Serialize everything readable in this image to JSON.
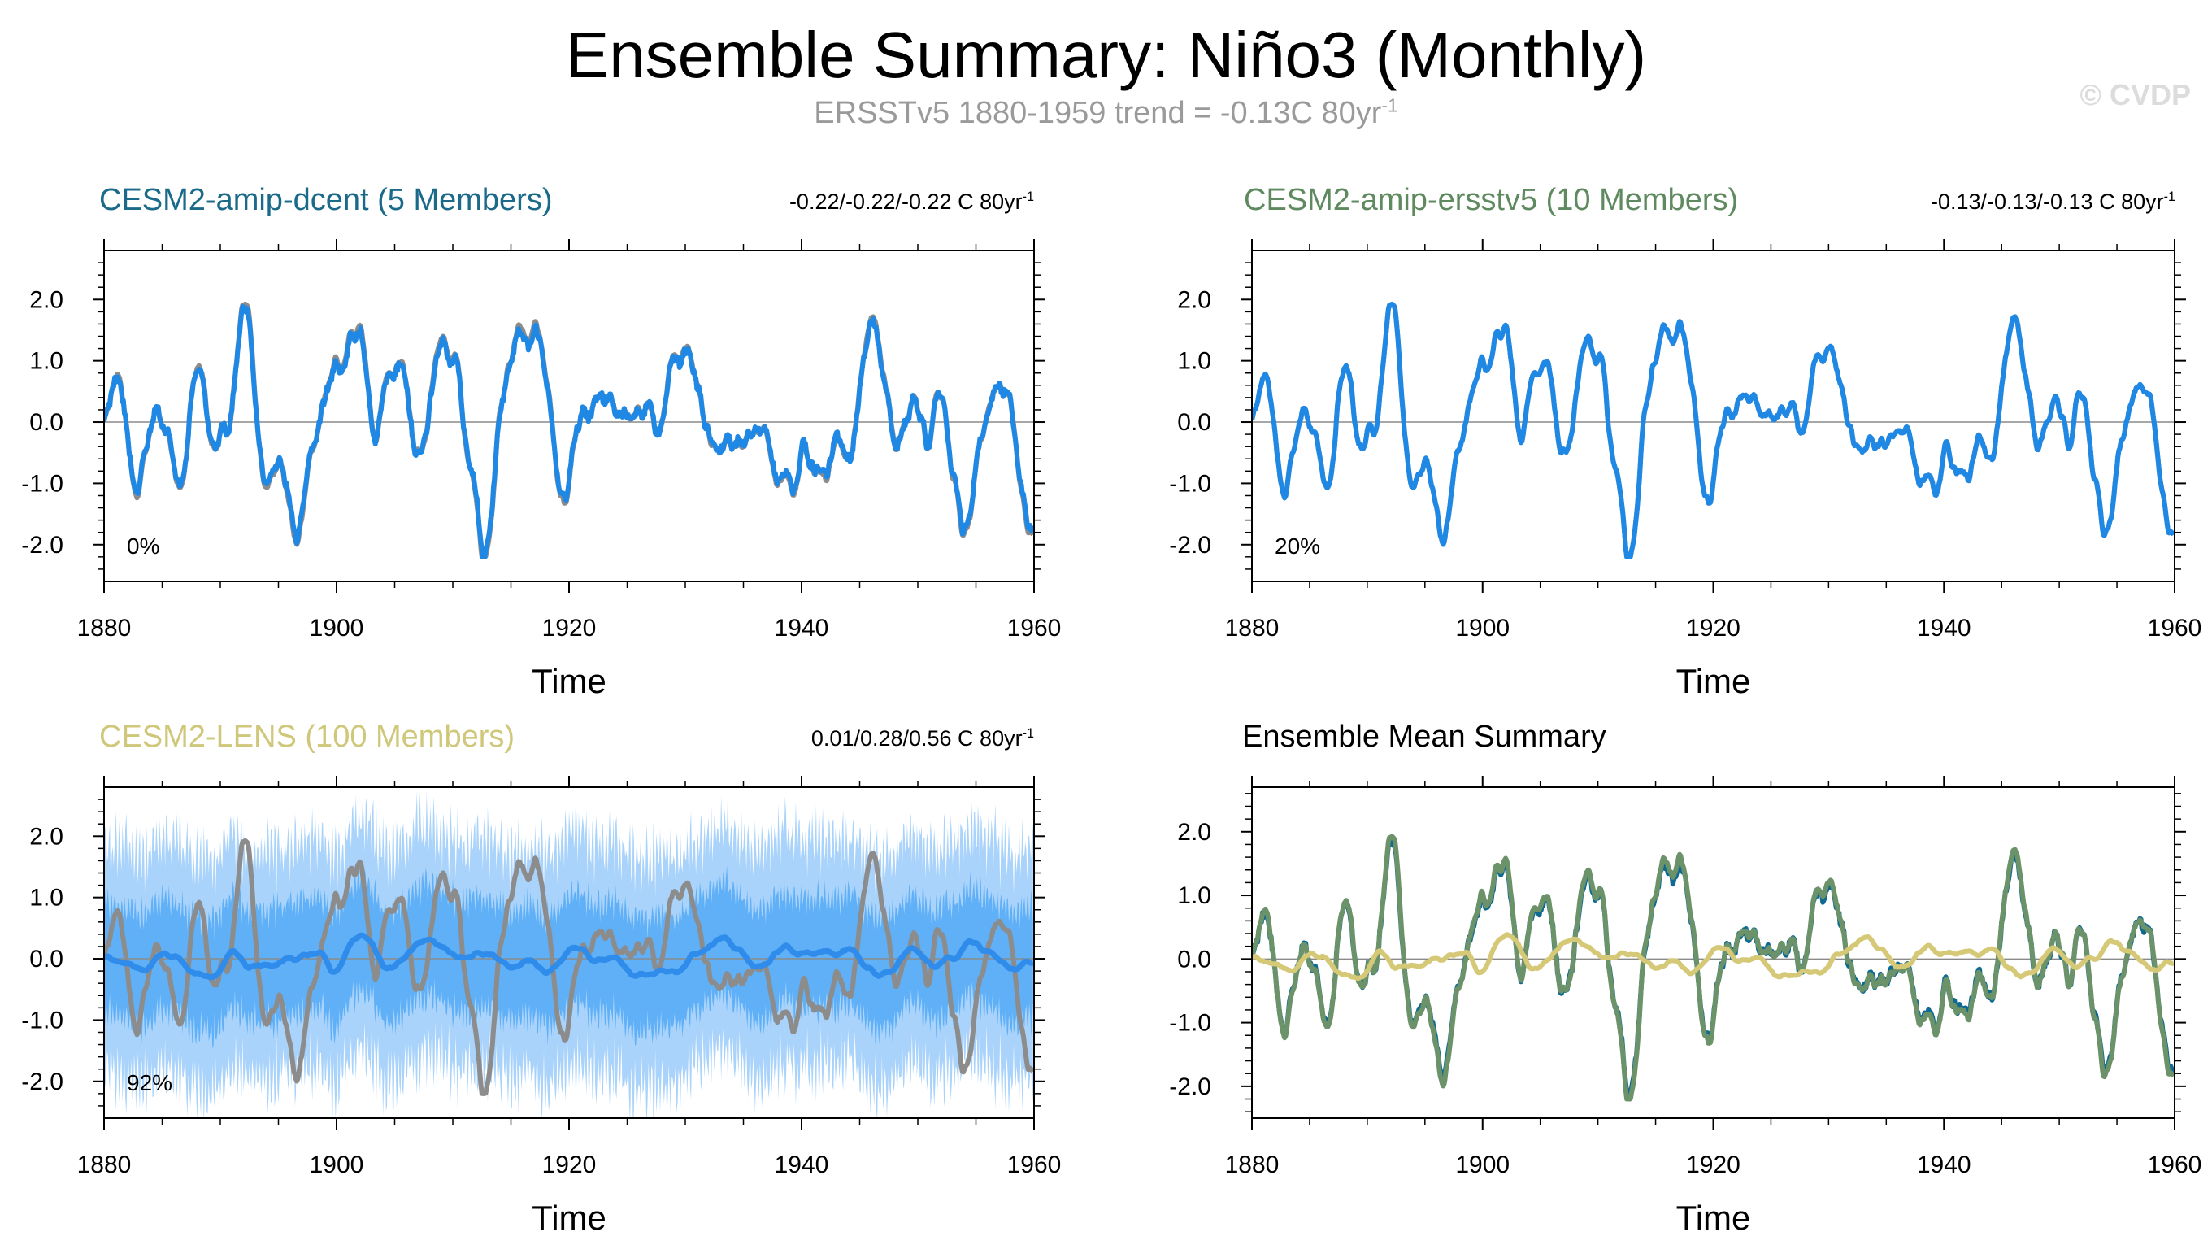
{
  "header": {
    "title": "Ensemble Summary: Niño3 (Monthly)",
    "subtitle": "ERSSTv5 1880-1959 trend = -0.13C 80yr",
    "subtitle_sup": "-1",
    "watermark": "© CVDP"
  },
  "chart_data": [
    {
      "type": "line",
      "title": "CESM2-amip-dcent (5 Members)",
      "title_color": "#1b6a8a",
      "trend_text": "-0.22/-0.22/-0.22 C 80yr",
      "trend_sup": "-1",
      "percent_label": "0%",
      "xlabel": "Time",
      "ylabel": "",
      "xlim": [
        1880,
        1960
      ],
      "ylim": [
        -2.6,
        2.8
      ],
      "xticks": [
        1880,
        1900,
        1920,
        1940,
        1960
      ],
      "yticks": [
        -2.0,
        -1.0,
        0.0,
        1.0,
        2.0
      ],
      "ytick_labels": [
        "-2.0",
        "-1.0",
        "0.0",
        "1.0",
        "2.0"
      ],
      "series": [
        {
          "color": "#8c8c8c",
          "style": "observed",
          "seed": 7,
          "amp": 1.0
        },
        {
          "color": "#1f88e5",
          "style": "ensemble-mean",
          "seed": 7,
          "amp": 0.96,
          "jitter": 0.12
        }
      ]
    },
    {
      "type": "line",
      "title": "CESM2-amip-ersstv5 (10 Members)",
      "title_color": "#5f8a60",
      "trend_text": "-0.13/-0.13/-0.13 C 80yr",
      "trend_sup": "-1",
      "percent_label": "20%",
      "xlabel": "Time",
      "ylabel": "",
      "xlim": [
        1880,
        1960
      ],
      "ylim": [
        -2.6,
        2.8
      ],
      "xticks": [
        1880,
        1900,
        1920,
        1940,
        1960
      ],
      "yticks": [
        -2.0,
        -1.0,
        0.0,
        1.0,
        2.0
      ],
      "ytick_labels": [
        "-2.0",
        "-1.0",
        "0.0",
        "1.0",
        "2.0"
      ],
      "series": [
        {
          "color": "#8c8c8c",
          "style": "observed",
          "seed": 7,
          "amp": 1.0
        },
        {
          "color": "#1f88e5",
          "style": "ensemble-mean",
          "seed": 7,
          "amp": 1.0,
          "jitter": 0.0
        }
      ]
    },
    {
      "type": "area",
      "title": "CESM2-LENS (100 Members)",
      "title_color": "#cfc77a",
      "trend_text": "0.01/0.28/0.56 C 80yr",
      "trend_sup": "-1",
      "percent_label": "92%",
      "xlabel": "Time",
      "ylabel": "",
      "xlim": [
        1880,
        1960
      ],
      "ylim": [
        -2.6,
        2.8
      ],
      "xticks": [
        1880,
        1900,
        1920,
        1940,
        1960
      ],
      "yticks": [
        -2.0,
        -1.0,
        0.0,
        1.0,
        2.0
      ],
      "ytick_labels": [
        "-2.0",
        "-1.0",
        "0.0",
        "1.0",
        "2.0"
      ],
      "bands": [
        {
          "color": "#a9d3fb",
          "spread": 1.75
        },
        {
          "color": "#5fb0f7",
          "spread": 0.85
        }
      ],
      "series": [
        {
          "color": "#8c8c8c",
          "style": "observed",
          "seed": 7,
          "amp": 1.0
        },
        {
          "color": "#2f8ceb",
          "style": "ensemble-mean",
          "seed": 23,
          "amp": 0.18,
          "jitter": 0.0
        }
      ]
    },
    {
      "type": "line",
      "title": "Ensemble Mean Summary",
      "title_color": "#000000",
      "trend_text": "",
      "trend_sup": "",
      "percent_label": "",
      "xlabel": "Time",
      "ylabel": "",
      "xlim": [
        1880,
        1960
      ],
      "ylim": [
        -2.5,
        2.7
      ],
      "xticks": [
        1880,
        1900,
        1920,
        1940,
        1960
      ],
      "yticks": [
        -2.0,
        -1.0,
        0.0,
        1.0,
        2.0
      ],
      "ytick_labels": [
        "-2.0",
        "-1.0",
        "0.0",
        "1.0",
        "2.0"
      ],
      "series": [
        {
          "color": "#0f6a92",
          "style": "ensemble-mean",
          "seed": 7,
          "amp": 0.96,
          "jitter": 0.12
        },
        {
          "color": "#6b9268",
          "style": "ensemble-mean",
          "seed": 7,
          "amp": 1.0,
          "jitter": 0.0
        },
        {
          "color": "#d5c978",
          "style": "ensemble-mean",
          "seed": 23,
          "amp": 0.18,
          "jitter": 0.0
        }
      ]
    }
  ]
}
